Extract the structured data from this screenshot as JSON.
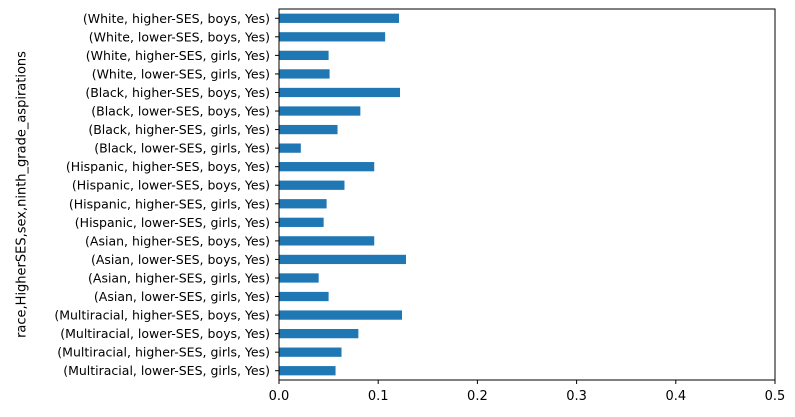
{
  "chart_data": {
    "type": "bar",
    "orientation": "horizontal",
    "title": "",
    "xlabel": "",
    "ylabel": "race,HigherSES,sex,ninth_grade_aspirations",
    "xlim": [
      0,
      0.5
    ],
    "x_ticks": [
      "0.0",
      "0.1",
      "0.2",
      "0.3",
      "0.4",
      "0.5"
    ],
    "grid": false,
    "legend": "none",
    "bar_color": "#1f77b4",
    "categories": [
      "(White, higher-SES, boys, Yes)",
      "(White, lower-SES, boys, Yes)",
      "(White, higher-SES, girls, Yes)",
      "(White, lower-SES, girls, Yes)",
      "(Black, higher-SES, boys, Yes)",
      "(Black, lower-SES, boys, Yes)",
      "(Black, higher-SES, girls, Yes)",
      "(Black, lower-SES, girls, Yes)",
      "(Hispanic, higher-SES, boys, Yes)",
      "(Hispanic, lower-SES, boys, Yes)",
      "(Hispanic, higher-SES, girls, Yes)",
      "(Hispanic, lower-SES, girls, Yes)",
      "(Asian, higher-SES, boys, Yes)",
      "(Asian, lower-SES, boys, Yes)",
      "(Asian, higher-SES, girls, Yes)",
      "(Asian, lower-SES, girls, Yes)",
      "(Multiracial, higher-SES, boys, Yes)",
      "(Multiracial, lower-SES, boys, Yes)",
      "(Multiracial, higher-SES, girls, Yes)",
      "(Multiracial, lower-SES, girls, Yes)"
    ],
    "values": [
      0.121,
      0.107,
      0.05,
      0.051,
      0.122,
      0.082,
      0.059,
      0.022,
      0.096,
      0.066,
      0.048,
      0.045,
      0.096,
      0.128,
      0.04,
      0.05,
      0.124,
      0.08,
      0.063,
      0.057
    ]
  }
}
